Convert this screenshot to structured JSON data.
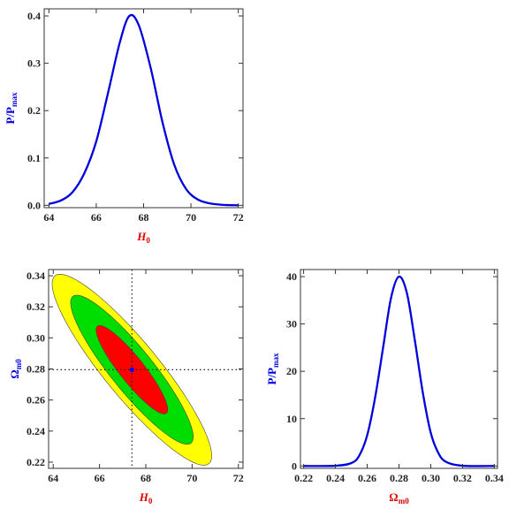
{
  "colors": {
    "curve": "#0000dd",
    "xlabel": "#dd0000",
    "ylabel": "#0000dd",
    "contour_1sigma": "#ff0000",
    "contour_2sigma": "#00dd00",
    "contour_3sigma": "#ffff00",
    "best_fit": "#0000ff"
  },
  "chart_data": [
    {
      "type": "line",
      "title": "",
      "xlabel": "H",
      "xlabel_sub": "0",
      "ylabel": "P/P",
      "ylabel_sub": "max",
      "xlim": [
        63.8,
        72.2
      ],
      "ylim": [
        -0.005,
        0.415
      ],
      "xticks": [
        64,
        66,
        68,
        70,
        72
      ],
      "yticks": [
        0.0,
        0.1,
        0.2,
        0.3,
        0.4
      ],
      "ytick_labels": [
        "0.0",
        "0.1",
        "0.2",
        "0.3",
        "0.4"
      ],
      "series": [
        {
          "x": [
            64.0,
            64.5,
            65.0,
            65.5,
            66.0,
            66.5,
            67.0,
            67.4,
            67.8,
            68.3,
            68.8,
            69.3,
            69.8,
            70.3,
            70.8,
            71.3,
            72.0
          ],
          "y": [
            0.003,
            0.01,
            0.028,
            0.068,
            0.135,
            0.238,
            0.345,
            0.4,
            0.38,
            0.29,
            0.175,
            0.085,
            0.034,
            0.012,
            0.004,
            0.001,
            0.0
          ]
        }
      ]
    },
    {
      "type": "contour",
      "title": "",
      "xlabel": "H",
      "xlabel_sub": "0",
      "ylabel": "Ω",
      "ylabel_sub": "m0",
      "xlim": [
        63.8,
        72.2
      ],
      "ylim": [
        0.216,
        0.344
      ],
      "xticks": [
        64,
        66,
        68,
        70,
        72
      ],
      "yticks": [
        0.22,
        0.24,
        0.26,
        0.28,
        0.3,
        0.32,
        0.34
      ],
      "ytick_labels": [
        "0.22",
        "0.24",
        "0.26",
        "0.28",
        "0.30",
        "0.32",
        "0.34"
      ],
      "best_fit": {
        "x": 67.4,
        "y": 0.2795
      },
      "ellipses": [
        {
          "level": "3sigma",
          "cx": 67.4,
          "cy": 0.2795,
          "rx": 3.45,
          "ry": 0.0615
        },
        {
          "level": "2sigma",
          "cx": 67.4,
          "cy": 0.2795,
          "rx": 2.65,
          "ry": 0.048
        },
        {
          "level": "1sigma",
          "cx": 67.4,
          "cy": 0.2795,
          "rx": 1.55,
          "ry": 0.0285
        }
      ],
      "correlation": -0.9
    },
    {
      "type": "line",
      "title": "",
      "xlabel": "Ω",
      "xlabel_sub": "m0",
      "ylabel": "P/P",
      "ylabel_sub": "max",
      "xlim": [
        0.218,
        0.342
      ],
      "ylim": [
        -0.5,
        41.5
      ],
      "xticks": [
        0.22,
        0.24,
        0.26,
        0.28,
        0.3,
        0.32,
        0.34
      ],
      "xtick_labels": [
        "0.22",
        "0.24",
        "0.26",
        "0.28",
        "0.30",
        "0.32",
        "0.34"
      ],
      "yticks": [
        0,
        10,
        20,
        30,
        40
      ],
      "ytick_labels": [
        "0",
        "10",
        "20",
        "30",
        "40"
      ],
      "series": [
        {
          "x": [
            0.22,
            0.24,
            0.25,
            0.255,
            0.26,
            0.265,
            0.27,
            0.275,
            0.28,
            0.285,
            0.29,
            0.295,
            0.3,
            0.305,
            0.31,
            0.32,
            0.34
          ],
          "y": [
            0.0,
            0.05,
            0.6,
            2.2,
            6.5,
            14.5,
            25.0,
            35.5,
            40.0,
            36.5,
            26.5,
            15.5,
            7.0,
            2.6,
            0.8,
            0.05,
            0.0
          ]
        }
      ]
    }
  ]
}
